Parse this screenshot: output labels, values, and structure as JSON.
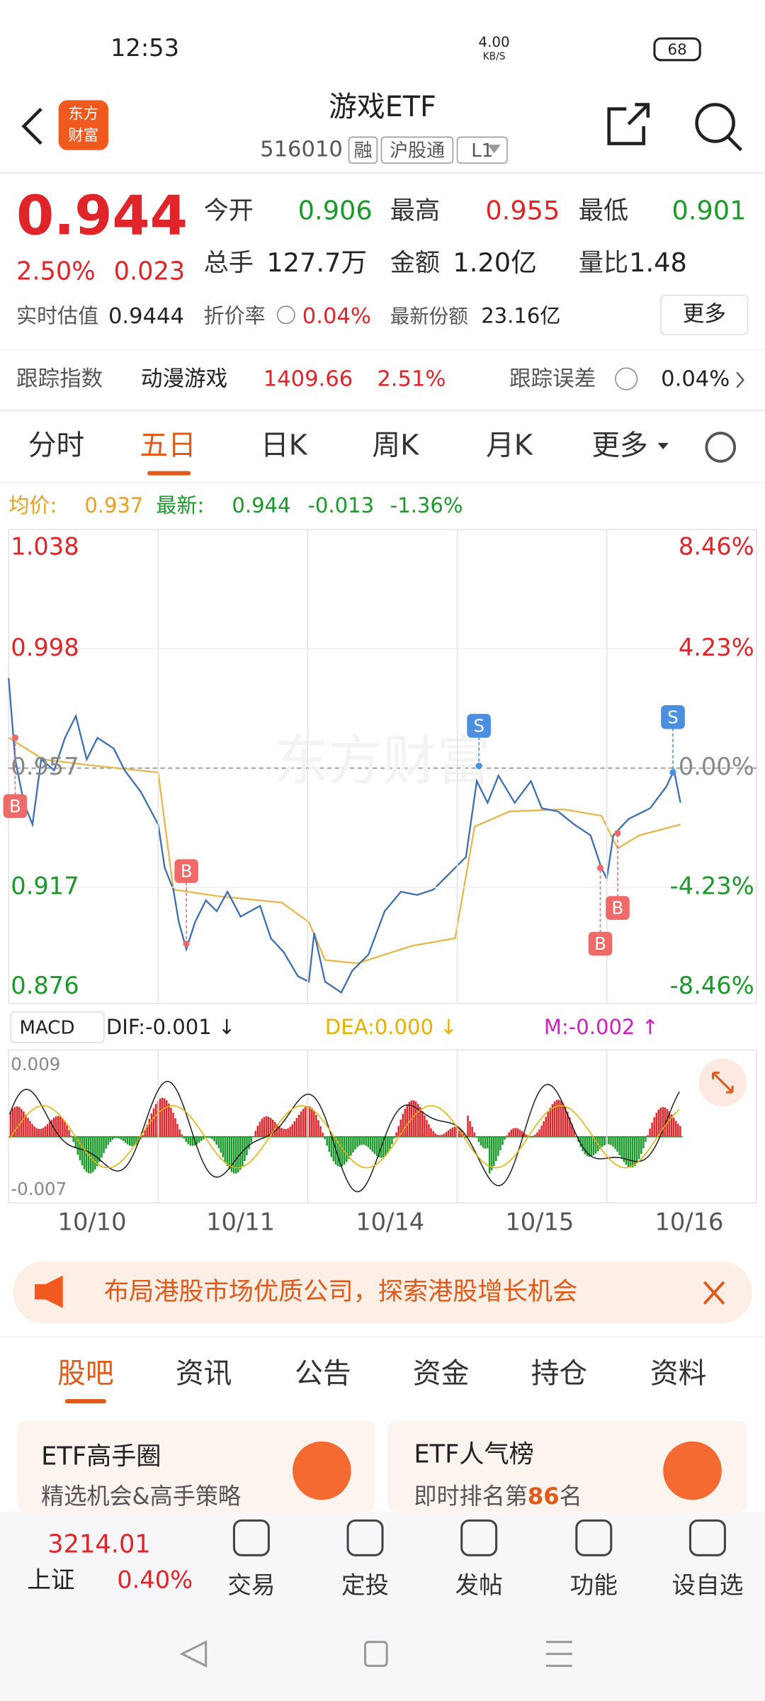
{
  "status": {
    "time": "12:53",
    "speed": "4.00",
    "speed_unit": "KB/S",
    "battery": "68"
  },
  "header": {
    "logo": "东方财富",
    "title": "游戏ETF",
    "code": "516010",
    "tags": [
      "融",
      "沪股通",
      "L1"
    ]
  },
  "quote": {
    "price": "0.944",
    "pct": "2.50%",
    "change": "0.023",
    "fields": [
      {
        "label": "今开",
        "value": "0.906"
      },
      {
        "label": "最高",
        "value": "0.955"
      },
      {
        "label": "最低",
        "value": "0.901"
      },
      {
        "label": "总手",
        "value": "127.7万"
      },
      {
        "label": "金额",
        "value": "1.20亿"
      },
      {
        "label": "量比",
        "value": "1.48"
      }
    ],
    "est_label": "实时估值",
    "est": "0.9444",
    "premium_label": "折价率",
    "premium": "0.04%",
    "shares_label": "最新份额",
    "shares": "23.16亿",
    "more": "更多"
  },
  "track": {
    "label": "跟踪指数",
    "index": "动漫游戏",
    "value": "1409.66",
    "pct": "2.51%",
    "err_label": "跟踪误差",
    "err": "0.04%"
  },
  "tabs": [
    "分时",
    "五日",
    "日K",
    "周K",
    "月K",
    "更多"
  ],
  "chart": {
    "avg_label": "均价:",
    "avg": "0.937",
    "latest_label": "最新:",
    "latest": "0.944",
    "chg": "-0.013",
    "chg_pct": "-1.36%",
    "left_labels": [
      "1.038",
      "0.998",
      "0.957",
      "0.917",
      "0.876"
    ],
    "right_labels": [
      "8.46%",
      "4.23%",
      "0.00%",
      "-4.23%",
      "-8.46%"
    ],
    "watermark": "东方财富",
    "markers": [
      "B",
      "B",
      "S",
      "B",
      "B",
      "S"
    ],
    "macd": {
      "label": "MACD",
      "dif": "DIF:-0.001 ↓",
      "dea": "DEA:0.000 ↓",
      "m": "M:-0.002 ↑",
      "top": "0.009",
      "bottom": "-0.007"
    },
    "dates": [
      "10/10",
      "10/11",
      "10/14",
      "10/15",
      "10/16"
    ]
  },
  "banner": "布局港股市场优质公司，探索港股增长机会",
  "section_tabs": [
    "股吧",
    "资讯",
    "公告",
    "资金",
    "持仓",
    "资料"
  ],
  "cards": [
    {
      "title": "ETF高手圈",
      "sub": "精选机会&高手策略"
    },
    {
      "title": "ETF人气榜",
      "sub_prefix": "即时排名第",
      "rank": "86",
      "sub_suffix": "名"
    }
  ],
  "nav": {
    "index_value": "3214.01",
    "index_name": "上证",
    "index_pct": "0.40%",
    "items": [
      "交易",
      "定投",
      "发帖",
      "功能",
      "设自选"
    ]
  }
}
